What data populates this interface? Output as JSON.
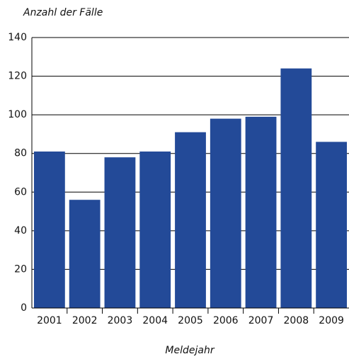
{
  "chart_data": {
    "type": "bar",
    "title": "Anzahl der Fälle",
    "x_label": "Meldejahr",
    "categories": [
      "2001",
      "2002",
      "2003",
      "2004",
      "2005",
      "2006",
      "2007",
      "2008",
      "2009"
    ],
    "values": [
      81,
      56,
      78,
      81,
      91,
      98,
      99,
      124,
      86
    ],
    "color": "#234a98",
    "ylim": [
      0,
      140
    ],
    "yticks": [
      0,
      20,
      40,
      60,
      80,
      100,
      120,
      140
    ],
    "grid": true
  }
}
